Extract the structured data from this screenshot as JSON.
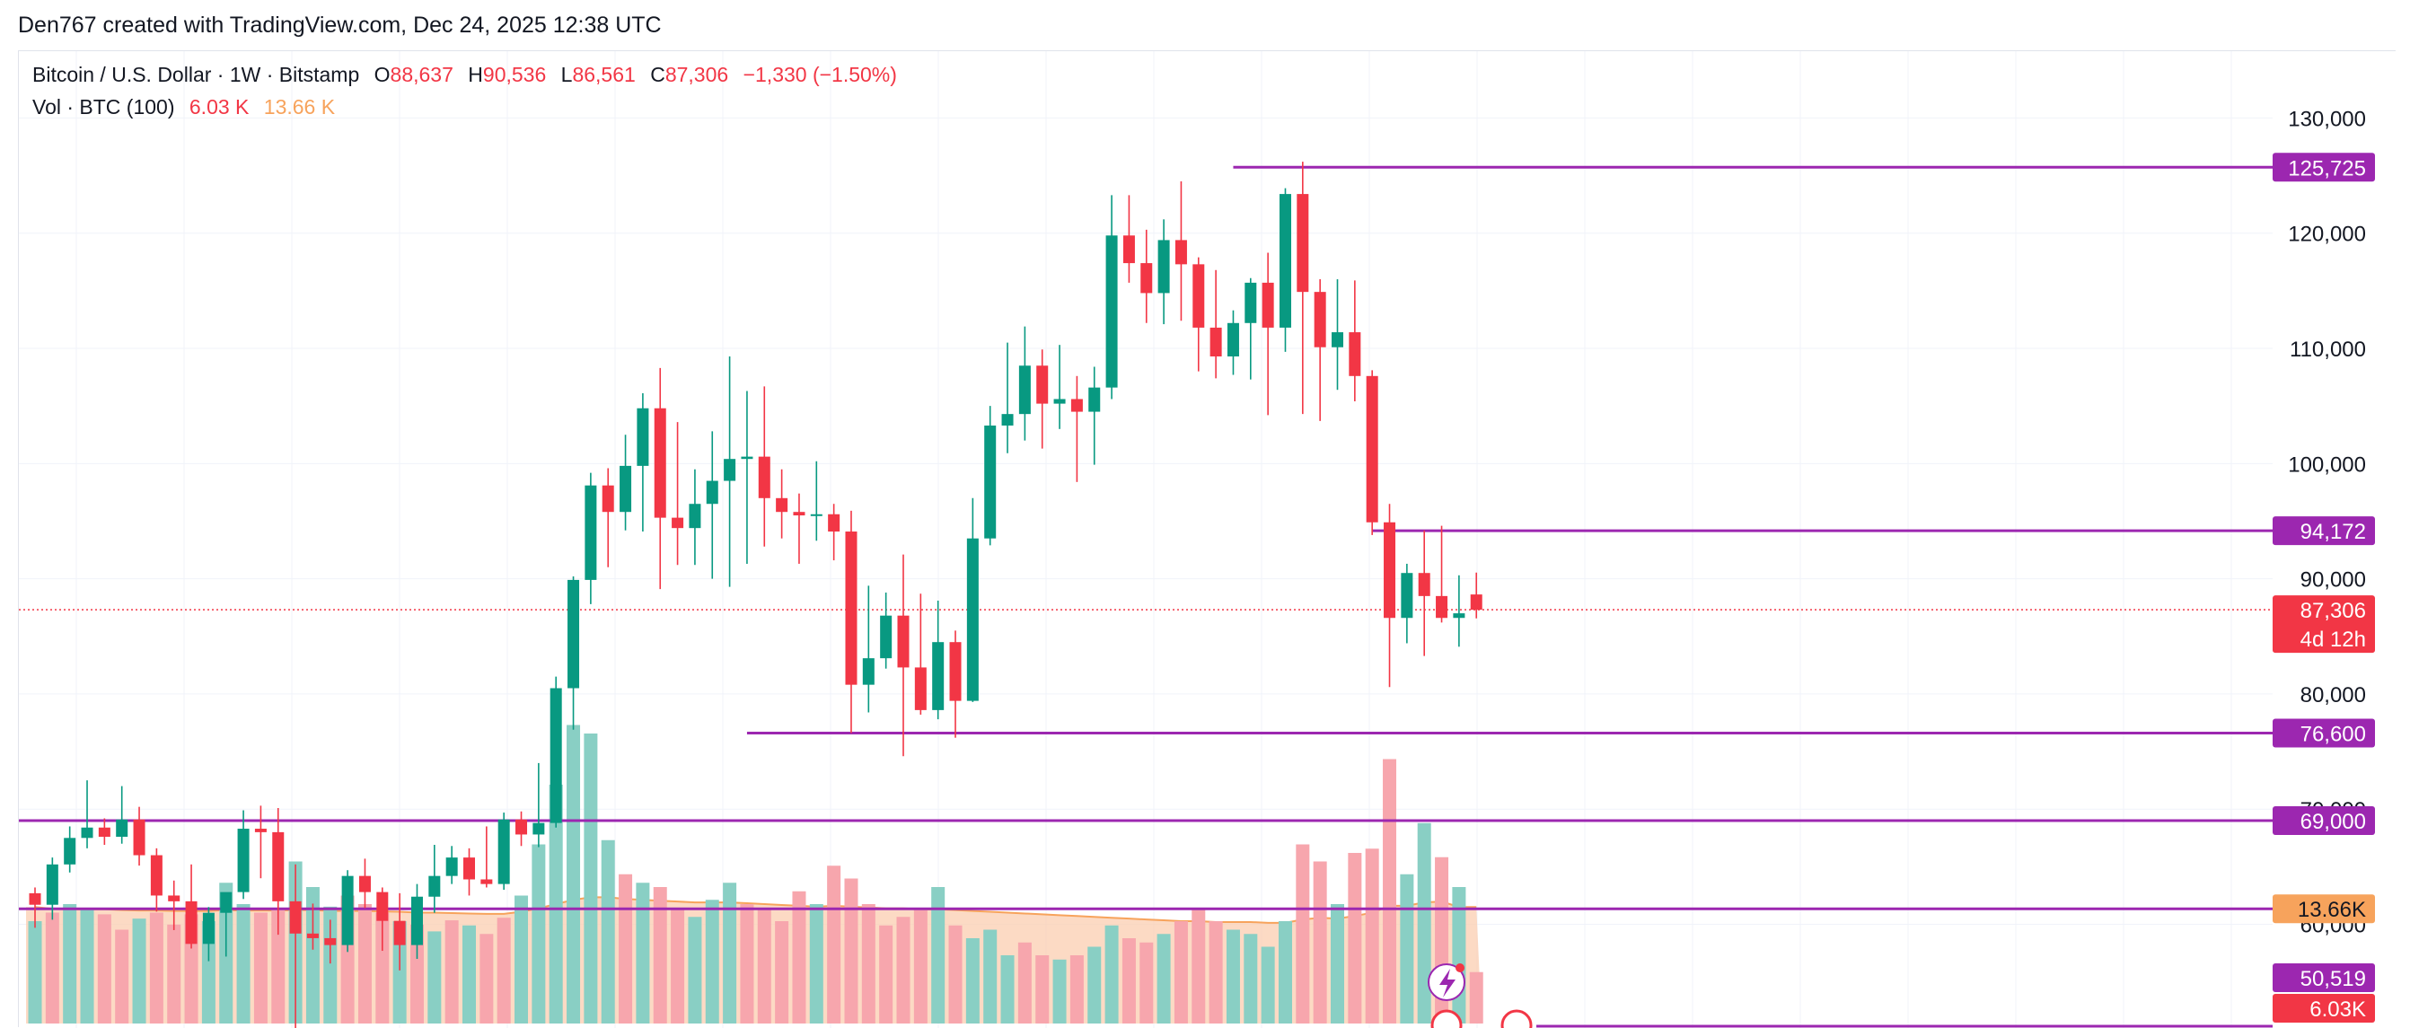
{
  "header": {
    "text": "Den767 created with TradingView.com, Dec 24, 2025 12:38 UTC"
  },
  "legend": {
    "symbol": "Bitcoin / U.S. Dollar · 1W · Bitstamp",
    "o_label": "O",
    "o_value": "88,637",
    "h_label": "H",
    "h_value": "90,536",
    "l_label": "L",
    "l_value": "86,561",
    "c_label": "C",
    "c_value": "87,306",
    "change": "−1,330 (−1.50%)",
    "vol_label": "Vol · BTC (100)",
    "vol_value1": "6.03 K",
    "vol_value2": "13.66 K"
  },
  "colors": {
    "up": "#089981",
    "down": "#f23645",
    "level": "#9c27b0",
    "vol_ma": "#f7a35c"
  },
  "chart_data": {
    "type": "candlestick",
    "y_axis": {
      "ticks": [
        "130,000",
        "120,000",
        "110,000",
        "100,000",
        "90,000",
        "80,000",
        "70,000",
        "60,000"
      ],
      "tick_values": [
        130000,
        120000,
        110000,
        100000,
        90000,
        80000,
        70000,
        60000
      ],
      "ylim": [
        51000,
        135800
      ]
    },
    "levels": [
      {
        "label": "125,725",
        "value": 125725,
        "start_index": 69
      },
      {
        "label": "94,172",
        "value": 94172,
        "start_index": 77
      },
      {
        "label": "76,600",
        "value": 76600,
        "start_index": 41
      },
      {
        "label": "69,000",
        "value": 69000,
        "start_index": 0
      }
    ],
    "last_price": {
      "label": "87,306",
      "value": 87306,
      "countdown": "4d 12h"
    },
    "volume_badges": [
      {
        "label": "13.66K",
        "kind": "ma"
      },
      {
        "label": "50,519",
        "kind": "level"
      },
      {
        "label": "6.03K",
        "kind": "current"
      }
    ],
    "candles": [
      [
        62700,
        63200,
        59700,
        61700
      ],
      [
        61700,
        65800,
        60400,
        65200
      ],
      [
        65200,
        68500,
        64500,
        67500
      ],
      [
        67500,
        72500,
        66600,
        68400
      ],
      [
        68400,
        69200,
        66900,
        67600
      ],
      [
        67600,
        72000,
        67000,
        69100
      ],
      [
        69100,
        70200,
        65100,
        66000
      ],
      [
        66000,
        66600,
        61100,
        62500
      ],
      [
        62500,
        63800,
        59500,
        62000
      ],
      [
        62000,
        65200,
        57900,
        58300
      ],
      [
        58300,
        61500,
        56800,
        61000
      ],
      [
        61000,
        62000,
        57200,
        62800
      ],
      [
        62800,
        69900,
        62200,
        68300
      ],
      [
        68300,
        70300,
        64000,
        68000
      ],
      [
        68000,
        70100,
        59100,
        62000
      ],
      [
        62000,
        65200,
        49300,
        59200
      ],
      [
        59200,
        61800,
        57800,
        58800
      ],
      [
        58800,
        60400,
        56600,
        58200
      ],
      [
        58200,
        64700,
        57600,
        64200
      ],
      [
        64200,
        65700,
        61400,
        62800
      ],
      [
        62800,
        63200,
        57700,
        60300
      ],
      [
        60300,
        62700,
        56000,
        58200
      ],
      [
        58200,
        63500,
        57000,
        62400
      ],
      [
        62400,
        66900,
        61000,
        64200
      ],
      [
        64200,
        66800,
        63500,
        65800
      ],
      [
        65800,
        66600,
        62500,
        63900
      ],
      [
        63900,
        68500,
        63200,
        63500
      ],
      [
        63500,
        69700,
        63000,
        69100
      ],
      [
        69100,
        69800,
        66800,
        67800
      ],
      [
        67800,
        74000,
        66700,
        68800
      ],
      [
        68800,
        81500,
        68400,
        80500
      ],
      [
        80500,
        90200,
        76900,
        89900
      ],
      [
        89900,
        99200,
        87800,
        98100
      ],
      [
        98100,
        99600,
        91000,
        95800
      ],
      [
        95800,
        102500,
        94200,
        99800
      ],
      [
        99800,
        106100,
        94100,
        104800
      ],
      [
        104800,
        108300,
        89100,
        95300
      ],
      [
        95300,
        103600,
        91200,
        94400
      ],
      [
        94400,
        99500,
        91200,
        96500
      ],
      [
        96500,
        102800,
        90000,
        98500
      ],
      [
        98500,
        109300,
        89300,
        100400
      ],
      [
        100400,
        106300,
        91300,
        100600
      ],
      [
        100600,
        106700,
        92800,
        97000
      ],
      [
        97000,
        99500,
        93500,
        95800
      ],
      [
        95800,
        97400,
        91300,
        95500
      ],
      [
        95500,
        100200,
        93300,
        95600
      ],
      [
        95600,
        96500,
        91600,
        94100
      ],
      [
        94100,
        95900,
        76600,
        80800
      ],
      [
        80800,
        89400,
        78400,
        83100
      ],
      [
        83100,
        88800,
        82200,
        86800
      ],
      [
        86800,
        92100,
        74600,
        82300
      ],
      [
        82300,
        88700,
        78200,
        78600
      ],
      [
        78600,
        88100,
        77800,
        84500
      ],
      [
        84500,
        85500,
        76200,
        79400
      ],
      [
        79400,
        97000,
        79300,
        93500
      ],
      [
        93500,
        105000,
        92900,
        103300
      ],
      [
        103300,
        110500,
        100900,
        104300
      ],
      [
        104300,
        111900,
        102000,
        108500
      ],
      [
        108500,
        109900,
        101300,
        105200
      ],
      [
        105200,
        110300,
        103000,
        105600
      ],
      [
        105600,
        107600,
        98400,
        104500
      ],
      [
        104500,
        108400,
        99900,
        106600
      ],
      [
        106600,
        123300,
        105600,
        119800
      ],
      [
        119800,
        123300,
        115700,
        117400
      ],
      [
        117400,
        120300,
        112200,
        114800
      ],
      [
        114800,
        121200,
        112100,
        119400
      ],
      [
        119400,
        124500,
        112400,
        117300
      ],
      [
        117300,
        117900,
        108000,
        111800
      ],
      [
        111800,
        116800,
        107400,
        109300
      ],
      [
        109300,
        113300,
        107700,
        112200
      ],
      [
        112200,
        116100,
        107300,
        115700
      ],
      [
        115700,
        118300,
        104200,
        111800
      ],
      [
        111800,
        123900,
        109700,
        123400
      ],
      [
        123400,
        126200,
        104300,
        114900
      ],
      [
        114900,
        116000,
        103700,
        110100
      ],
      [
        110100,
        116000,
        106400,
        111400
      ],
      [
        111400,
        115900,
        105400,
        107600
      ],
      [
        107600,
        108100,
        93800,
        94900
      ],
      [
        94900,
        96500,
        80600,
        86600
      ],
      [
        86600,
        91300,
        84400,
        90500
      ],
      [
        90500,
        94200,
        83300,
        88500
      ],
      [
        88500,
        94600,
        86200,
        86600
      ],
      [
        86600,
        90300,
        84100,
        87000
      ],
      [
        88637,
        90536,
        86561,
        87306
      ]
    ],
    "volumes": [
      [
        12.0,
        13.66,
        "up"
      ],
      [
        13.0,
        13.45,
        "down"
      ],
      [
        14.0,
        13.4,
        "up"
      ],
      [
        13.5,
        13.4,
        "up"
      ],
      [
        12.8,
        13.4,
        "down"
      ],
      [
        11.0,
        13.3,
        "down"
      ],
      [
        12.3,
        13.25,
        "up"
      ],
      [
        13.0,
        13.25,
        "down"
      ],
      [
        11.6,
        13.2,
        "down"
      ],
      [
        12.8,
        13.2,
        "down"
      ],
      [
        12.0,
        13.2,
        "up"
      ],
      [
        16.5,
        13.3,
        "up"
      ],
      [
        14.0,
        13.25,
        "up"
      ],
      [
        13.0,
        13.25,
        "down"
      ],
      [
        13.5,
        13.25,
        "down"
      ],
      [
        19.0,
        13.3,
        "up"
      ],
      [
        16.0,
        13.3,
        "up"
      ],
      [
        13.7,
        13.2,
        "up"
      ],
      [
        15.0,
        13.2,
        "down"
      ],
      [
        14.0,
        13.2,
        "down"
      ],
      [
        13.0,
        13.15,
        "down"
      ],
      [
        12.0,
        13.1,
        "up"
      ],
      [
        11.6,
        13.0,
        "down"
      ],
      [
        10.8,
        13.0,
        "up"
      ],
      [
        12.1,
        12.95,
        "down"
      ],
      [
        11.5,
        12.9,
        "up"
      ],
      [
        10.5,
        12.85,
        "down"
      ],
      [
        12.4,
        12.85,
        "down"
      ],
      [
        15.0,
        13.1,
        "up"
      ],
      [
        21.0,
        13.5,
        "up"
      ],
      [
        28.0,
        14.0,
        "up"
      ],
      [
        35.0,
        14.5,
        "up"
      ],
      [
        34.0,
        14.8,
        "up"
      ],
      [
        21.5,
        14.8,
        "up"
      ],
      [
        17.5,
        14.6,
        "down"
      ],
      [
        16.5,
        14.5,
        "up"
      ],
      [
        16.0,
        14.4,
        "down"
      ],
      [
        13.5,
        14.3,
        "down"
      ],
      [
        12.5,
        14.2,
        "up"
      ],
      [
        14.5,
        14.2,
        "up"
      ],
      [
        16.5,
        14.2,
        "up"
      ],
      [
        14.0,
        14.1,
        "down"
      ],
      [
        13.5,
        14.0,
        "down"
      ],
      [
        12.0,
        13.9,
        "down"
      ],
      [
        15.5,
        13.8,
        "down"
      ],
      [
        14.0,
        13.7,
        "up"
      ],
      [
        18.5,
        13.8,
        "down"
      ],
      [
        17.0,
        13.7,
        "down"
      ],
      [
        14.0,
        13.6,
        "down"
      ],
      [
        11.5,
        13.5,
        "down"
      ],
      [
        12.5,
        13.5,
        "down"
      ],
      [
        13.5,
        13.4,
        "down"
      ],
      [
        16.0,
        13.4,
        "up"
      ],
      [
        11.5,
        13.3,
        "down"
      ],
      [
        10.0,
        13.2,
        "up"
      ],
      [
        11.0,
        13.1,
        "up"
      ],
      [
        8.0,
        13.0,
        "up"
      ],
      [
        9.5,
        12.9,
        "down"
      ],
      [
        8.0,
        12.8,
        "down"
      ],
      [
        7.5,
        12.7,
        "up"
      ],
      [
        8.0,
        12.6,
        "down"
      ],
      [
        9.0,
        12.5,
        "up"
      ],
      [
        11.5,
        12.4,
        "up"
      ],
      [
        10.0,
        12.3,
        "down"
      ],
      [
        9.5,
        12.2,
        "down"
      ],
      [
        10.5,
        12.1,
        "up"
      ],
      [
        12.0,
        12.0,
        "down"
      ],
      [
        13.5,
        12.0,
        "down"
      ],
      [
        12.0,
        11.9,
        "down"
      ],
      [
        11.0,
        11.9,
        "up"
      ],
      [
        10.5,
        11.9,
        "up"
      ],
      [
        9.0,
        11.8,
        "up"
      ],
      [
        12.0,
        11.8,
        "up"
      ],
      [
        21.0,
        12.2,
        "down"
      ],
      [
        19.0,
        12.4,
        "down"
      ],
      [
        14.0,
        12.3,
        "up"
      ],
      [
        20.0,
        12.6,
        "down"
      ],
      [
        20.5,
        13.0,
        "down"
      ],
      [
        31.0,
        13.8,
        "down"
      ],
      [
        17.5,
        13.8,
        "up"
      ],
      [
        23.5,
        14.2,
        "up"
      ],
      [
        19.5,
        14.3,
        "down"
      ],
      [
        16.0,
        13.66,
        "up"
      ],
      [
        6.03,
        13.66,
        "down"
      ]
    ]
  }
}
